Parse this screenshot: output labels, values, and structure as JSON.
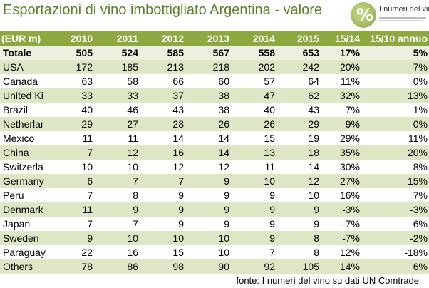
{
  "title": "Esportazioni di vino imbottigliato Argentina - valore",
  "logo": {
    "mark": "%",
    "text": "I numeri del vino"
  },
  "colors": {
    "header_bg": "#8ca83f",
    "band": "#dde7c6",
    "title": "#5b7f2a"
  },
  "table": {
    "headers": [
      "(EUR m)",
      "2010",
      "2011",
      "2012",
      "2013",
      "2014",
      "2015",
      "15/14",
      "15/10 annuo"
    ],
    "total": [
      "Totale",
      "505",
      "524",
      "585",
      "567",
      "558",
      "653",
      "17%",
      "5%"
    ],
    "rows": [
      [
        "USA",
        "172",
        "185",
        "213",
        "218",
        "202",
        "242",
        "20%",
        "7%"
      ],
      [
        "Canada",
        "63",
        "58",
        "66",
        "60",
        "57",
        "64",
        "11%",
        "0%"
      ],
      [
        "United Ki",
        "33",
        "33",
        "37",
        "38",
        "47",
        "62",
        "32%",
        "13%"
      ],
      [
        "Brazil",
        "40",
        "46",
        "43",
        "38",
        "40",
        "43",
        "7%",
        "1%"
      ],
      [
        "Netherlar",
        "29",
        "27",
        "28",
        "26",
        "26",
        "29",
        "9%",
        "0%"
      ],
      [
        "Mexico",
        "11",
        "11",
        "14",
        "14",
        "15",
        "19",
        "29%",
        "11%"
      ],
      [
        "China",
        "7",
        "12",
        "16",
        "14",
        "13",
        "18",
        "35%",
        "20%"
      ],
      [
        "Switzerla",
        "10",
        "10",
        "12",
        "12",
        "11",
        "14",
        "30%",
        "8%"
      ],
      [
        "Germany",
        "6",
        "7",
        "7",
        "9",
        "10",
        "12",
        "27%",
        "15%"
      ],
      [
        "Peru",
        "7",
        "8",
        "9",
        "9",
        "9",
        "10",
        "16%",
        "7%"
      ],
      [
        "Denmark",
        "11",
        "9",
        "9",
        "9",
        "9",
        "9",
        "-3%",
        "-3%"
      ],
      [
        "Japan",
        "7",
        "7",
        "9",
        "9",
        "9",
        "9",
        "-7%",
        "6%"
      ],
      [
        "Sweden",
        "9",
        "10",
        "10",
        "10",
        "9",
        "8",
        "-7%",
        "-2%"
      ],
      [
        "Paraguay",
        "22",
        "16",
        "15",
        "10",
        "7",
        "8",
        "12%",
        "-18%"
      ],
      [
        "Others",
        "78",
        "86",
        "98",
        "90",
        "92",
        "105",
        "14%",
        "6%"
      ]
    ]
  },
  "source": "fonte: I numeri del vino su dati UN Comtrade"
}
